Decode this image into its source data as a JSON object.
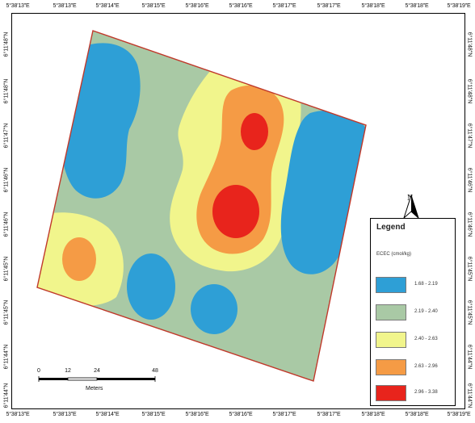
{
  "map": {
    "top_ticks": [
      "5°38'13\"E",
      "5°38'13\"E",
      "5°38'14\"E",
      "5°38'15\"E",
      "5°38'16\"E",
      "5°38'16\"E",
      "5°38'17\"E",
      "5°38'17\"E",
      "5°38'18\"E",
      "5°38'18\"E",
      "5°38'19\"E"
    ],
    "bottom_ticks": [
      "5°38'13\"E",
      "5°38'13\"E",
      "5°38'14\"E",
      "5°38'15\"E",
      "5°38'16\"E",
      "5°38'16\"E",
      "5°38'17\"E",
      "5°38'17\"E",
      "5°38'18\"E",
      "5°38'18\"E",
      "5°38'19\"E"
    ],
    "left_ticks": [
      "6°11'48\"N",
      "6°11'48\"N",
      "6°11'47\"N",
      "6°11'46\"N",
      "6°11'46\"N",
      "6°11'45\"N",
      "6°11'45\"N",
      "6°11'44\"N",
      "6°11'44\"N"
    ],
    "right_ticks": [
      "6°11'48\"N",
      "6°11'48\"N",
      "6°11'47\"N",
      "6°11'46\"N",
      "6°11'46\"N",
      "6°11'45\"N",
      "6°11'45\"N",
      "6°11'44\"N",
      "6°11'44\"N"
    ],
    "colors": {
      "class1": "#2e9fd6",
      "class2": "#a9c9a5",
      "class3": "#f1f58c",
      "class4": "#f59b45",
      "class5": "#e8241c",
      "boundary": "#c0392b"
    }
  },
  "legend": {
    "title": "Legend",
    "subtitle": "ECEC (cmol/kg)",
    "items": [
      {
        "label": "1.68 - 2.19",
        "color": "#2e9fd6"
      },
      {
        "label": "2.19 - 2.40",
        "color": "#a9c9a5"
      },
      {
        "label": "2.40 - 2.63",
        "color": "#f1f58c"
      },
      {
        "label": "2.63 - 2.96",
        "color": "#f59b45"
      },
      {
        "label": "2.96 - 3.38",
        "color": "#e8241c"
      }
    ]
  },
  "north": {
    "label": "N"
  },
  "scale": {
    "labels": [
      "0",
      "12",
      "24",
      "48"
    ],
    "unit": "Meters"
  }
}
